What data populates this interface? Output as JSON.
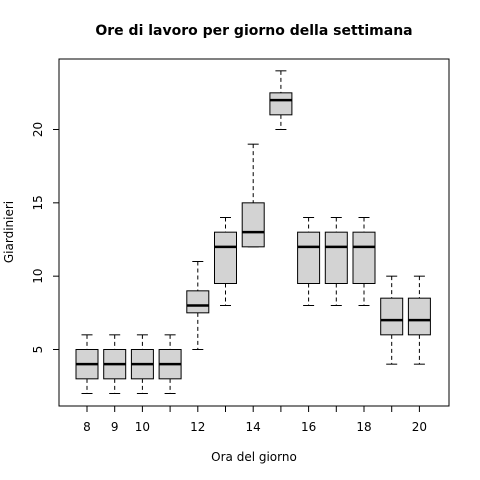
{
  "chart_data": {
    "type": "boxplot",
    "title": "Ore di lavoro per giorno della settimana",
    "xlabel": "Ora del giorno",
    "ylabel": "Giardinieri",
    "ylim": [
      1,
      25
    ],
    "y_ticks": [
      5,
      10,
      15,
      20
    ],
    "x_ticks": [
      8,
      9,
      10,
      12,
      14,
      16,
      18,
      20
    ],
    "grid": false,
    "boxes": [
      {
        "x": 8,
        "min": 2,
        "q1": 3,
        "median": 4,
        "q3": 5,
        "max": 6
      },
      {
        "x": 9,
        "min": 2,
        "q1": 3,
        "median": 4,
        "q3": 5,
        "max": 6
      },
      {
        "x": 10,
        "min": 2,
        "q1": 3,
        "median": 4,
        "q3": 5,
        "max": 6
      },
      {
        "x": 11,
        "min": 2,
        "q1": 3,
        "median": 4,
        "q3": 5,
        "max": 6
      },
      {
        "x": 12,
        "min": 5,
        "q1": 7.5,
        "median": 8,
        "q3": 9,
        "max": 11
      },
      {
        "x": 13,
        "min": 8,
        "q1": 9.5,
        "median": 12,
        "q3": 13,
        "max": 14
      },
      {
        "x": 14,
        "min": 12,
        "q1": 12,
        "median": 13,
        "q3": 15,
        "max": 19
      },
      {
        "x": 15,
        "min": 20,
        "q1": 21,
        "median": 22,
        "q3": 22.5,
        "max": 24
      },
      {
        "x": 16,
        "min": 8,
        "q1": 9.5,
        "median": 12,
        "q3": 13,
        "max": 14
      },
      {
        "x": 17,
        "min": 8,
        "q1": 9.5,
        "median": 12,
        "q3": 13,
        "max": 14
      },
      {
        "x": 18,
        "min": 8,
        "q1": 9.5,
        "median": 12,
        "q3": 13,
        "max": 14
      },
      {
        "x": 19,
        "min": 4,
        "q1": 6,
        "median": 7,
        "q3": 8.5,
        "max": 10
      },
      {
        "x": 20,
        "min": 4,
        "q1": 6,
        "median": 7,
        "q3": 8.5,
        "max": 10
      }
    ]
  }
}
